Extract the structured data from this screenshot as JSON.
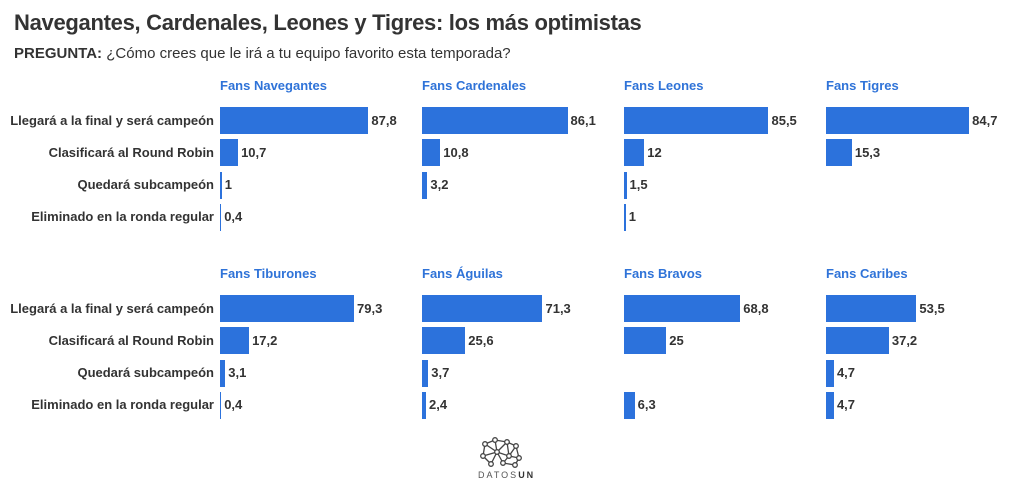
{
  "header": {
    "title": "Navegantes, Cardenales, Leones y Tigres: los más optimistas",
    "question_label": "PREGUNTA:",
    "question_text": " ¿Cómo crees que le irá a tu equipo favorito esta temporada?"
  },
  "colors": {
    "bar": "#2c72dc",
    "panel_title": "#2f73d8",
    "text": "#333333"
  },
  "chart_data": {
    "type": "bar",
    "orientation": "horizontal",
    "layout": "small-multiples 2x4",
    "title": "Navegantes, Cardenales, Leones y Tigres: los más optimistas",
    "subtitle": "PREGUNTA: ¿Cómo crees que le irá a tu equipo favorito esta temporada?",
    "categories": [
      "Llegará a la final y será campeón",
      "Clasificará al Round Robin",
      "Quedará subcampeón",
      "Eliminado en la ronda regular"
    ],
    "unit": "%",
    "xlim": [
      0,
      100
    ],
    "grid": false,
    "series": [
      {
        "name": "Fans Navegantes",
        "values": [
          87.8,
          10.7,
          1,
          0.4
        ],
        "labels": [
          "87,8",
          "10,7",
          "1",
          "0,4"
        ]
      },
      {
        "name": "Fans Cardenales",
        "values": [
          86.1,
          10.8,
          3.2,
          null
        ],
        "labels": [
          "86,1",
          "10,8",
          "3,2",
          ""
        ]
      },
      {
        "name": "Fans Leones",
        "values": [
          85.5,
          12,
          1.5,
          1
        ],
        "labels": [
          "85,5",
          "12",
          "1,5",
          "1"
        ]
      },
      {
        "name": "Fans Tigres",
        "values": [
          84.7,
          15.3,
          null,
          null
        ],
        "labels": [
          "84,7",
          "15,3",
          "",
          ""
        ]
      },
      {
        "name": "Fans Tiburones",
        "values": [
          79.3,
          17.2,
          3.1,
          0.4
        ],
        "labels": [
          "79,3",
          "17,2",
          "3,1",
          "0,4"
        ]
      },
      {
        "name": "Fans Águilas",
        "values": [
          71.3,
          25.6,
          3.7,
          2.4
        ],
        "labels": [
          "71,3",
          "25,6",
          "3,7",
          "2,4"
        ]
      },
      {
        "name": "Fans Bravos",
        "values": [
          68.8,
          25,
          null,
          6.3
        ],
        "labels": [
          "68,8",
          "25",
          "",
          "6,3"
        ]
      },
      {
        "name": "Fans Caribes",
        "values": [
          53.5,
          37.2,
          4.7,
          4.7
        ],
        "labels": [
          "53,5",
          "37,2",
          "4,7",
          "4,7"
        ]
      }
    ]
  },
  "footer": {
    "logo_icon": "network-graph-icon",
    "brand_prefix": "DATOS",
    "brand_suffix": "UN"
  }
}
